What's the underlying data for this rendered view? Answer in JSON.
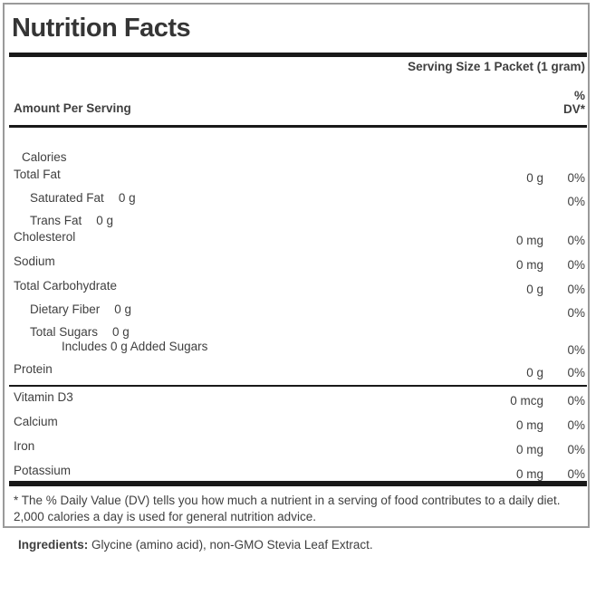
{
  "label": {
    "title": "Nutrition Facts",
    "serving_size": "Serving Size 1 Packet (1 gram)",
    "amount_per_serving": "Amount Per Serving",
    "dv_header": {
      "line1": "%",
      "line2": "DV*"
    },
    "rows": [
      {
        "name": "Calories",
        "indent": 0,
        "amount": "",
        "dv": ""
      },
      {
        "name": "Total Fat",
        "indent": 0,
        "amount": "0 g",
        "dv": "0%"
      },
      {
        "name": "Saturated Fat",
        "indent": 1,
        "inline_amount": "0 g",
        "amount": "",
        "dv": "0%"
      },
      {
        "name": "Trans Fat",
        "indent": 1,
        "inline_amount": "0 g",
        "amount": "",
        "dv": ""
      },
      {
        "name": "Cholesterol",
        "indent": 0,
        "amount": "0 mg",
        "dv": "0%"
      },
      {
        "name": "Sodium",
        "indent": 0,
        "amount": "0 mg",
        "dv": "0%"
      },
      {
        "name": "Total Carbohydrate",
        "indent": 0,
        "amount": "0 g",
        "dv": "0%"
      },
      {
        "name": "Dietary Fiber",
        "indent": 1,
        "inline_amount": "0 g",
        "amount": "",
        "dv": "0%"
      },
      {
        "name": "Total Sugars",
        "indent": 1,
        "inline_amount": "0 g",
        "amount": "",
        "dv": ""
      },
      {
        "name": "Includes 0 g Added Sugars",
        "indent": 2,
        "amount": "",
        "dv": "0%"
      },
      {
        "name": "Protein",
        "indent": 0,
        "amount": "0 g",
        "dv": "0%"
      }
    ],
    "vitamin_rows": [
      {
        "name": "Vitamin D3",
        "indent": 0,
        "amount": "0 mcg",
        "dv": "0%"
      },
      {
        "name": "Calcium",
        "indent": 0,
        "amount": "0 mg",
        "dv": "0%"
      },
      {
        "name": "Iron",
        "indent": 0,
        "amount": "0 mg",
        "dv": "0%"
      },
      {
        "name": "Potassium",
        "indent": 0,
        "amount": "0 mg",
        "dv": "0%"
      }
    ],
    "footnote": "* The % Daily Value (DV) tells you how much a nutrient in a serving of food contributes to a daily diet. 2,000 calories a day is used for general nutrition advice.",
    "ingredients_label": "Ingredients:",
    "ingredients_text": " Glycine (amino acid), non-GMO Stevia Leaf Extract."
  },
  "colors": {
    "text": "#3f3f3f",
    "rule": "#191919",
    "border": "#9a9a9a"
  }
}
